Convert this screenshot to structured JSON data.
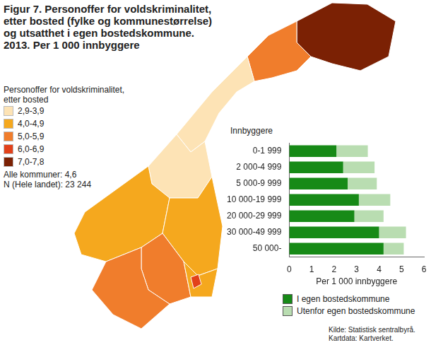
{
  "chart_data": {
    "type": "bar",
    "orientation": "horizontal",
    "stacked": true,
    "title": [
      "Figur 7. Personoffer for voldskriminalitet,",
      "etter bosted (fylke og kommunestørrelse)",
      "og utsatthet i egen bostedskommune.",
      "2013. Per 1 000 innbyggere"
    ],
    "y_label": "Innbyggere",
    "x_label": "Per 1 000 innbyggere",
    "categories": [
      "0-1 999",
      "2 000-4 999",
      "5 000-9 999",
      "10 000-19 999",
      "20 000-29 999",
      "30 000-49 999",
      "50 000-"
    ],
    "series": [
      {
        "name": "I egen bostedskommune",
        "color": "#178a17",
        "values": [
          2.1,
          2.4,
          2.6,
          3.1,
          2.9,
          4.0,
          4.2
        ]
      },
      {
        "name": "Utenfor egen bostedskommune",
        "color": "#b9ddb1",
        "values": [
          1.4,
          1.4,
          1.3,
          1.4,
          1.3,
          1.2,
          0.9
        ]
      }
    ],
    "xlim": [
      0,
      6
    ],
    "xticks": [
      0,
      1,
      2,
      3,
      4,
      5,
      6
    ],
    "grid": false,
    "legend": "bottom"
  },
  "map": {
    "legend_title": [
      "Personoffer for voldskriminalitet,",
      "etter bosted"
    ],
    "classes": [
      {
        "label": "2,9-3,9",
        "color": "#fde3b5"
      },
      {
        "label": "4,0-4,9",
        "color": "#f5a81e"
      },
      {
        "label": "5,0-5,9",
        "color": "#f07d2c"
      },
      {
        "label": "6,0-6,9",
        "color": "#e2411a"
      },
      {
        "label": "7,0-7,8",
        "color": "#7b2104"
      }
    ],
    "notes": [
      "Alle kommuner: 4,6",
      "N (Hele landet): 23 244"
    ],
    "region_classes": [
      "7,0-7,8",
      "5,0-5,9",
      "2,9-3,9",
      "2,9-3,9",
      "4,0-4,9",
      "4,0-4,9",
      "5,0-5,9",
      "5,0-5,9",
      "4,0-4,9",
      "6,0-6,9"
    ],
    "source": [
      "Kilde: Statistisk sentralbyrå.",
      "Kartdata: Kartverket."
    ]
  }
}
